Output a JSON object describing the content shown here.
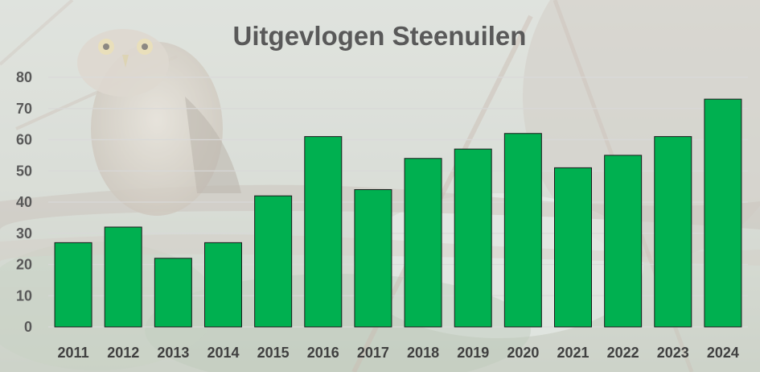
{
  "background": {
    "description_icon": "owl-photo-background"
  },
  "colors": {
    "bar_fill": "#00b050",
    "bar_stroke": "#1a1a1a",
    "title": "#595959",
    "gridline": "#d9d9d9"
  },
  "chart_data": {
    "type": "bar",
    "title": "Uitgevlogen Steenuilen",
    "xlabel": "",
    "ylabel": "",
    "categories": [
      "2011",
      "2012",
      "2013",
      "2014",
      "2015",
      "2016",
      "2017",
      "2018",
      "2019",
      "2020",
      "2021",
      "2022",
      "2023",
      "2024"
    ],
    "values": [
      27,
      32,
      22,
      27,
      42,
      61,
      44,
      54,
      57,
      62,
      51,
      55,
      61,
      73
    ],
    "ylim": [
      0,
      80
    ],
    "yticks": [
      "0",
      "10",
      "20",
      "30",
      "40",
      "50",
      "60",
      "70",
      "80"
    ],
    "grid": true,
    "legend": "none"
  }
}
